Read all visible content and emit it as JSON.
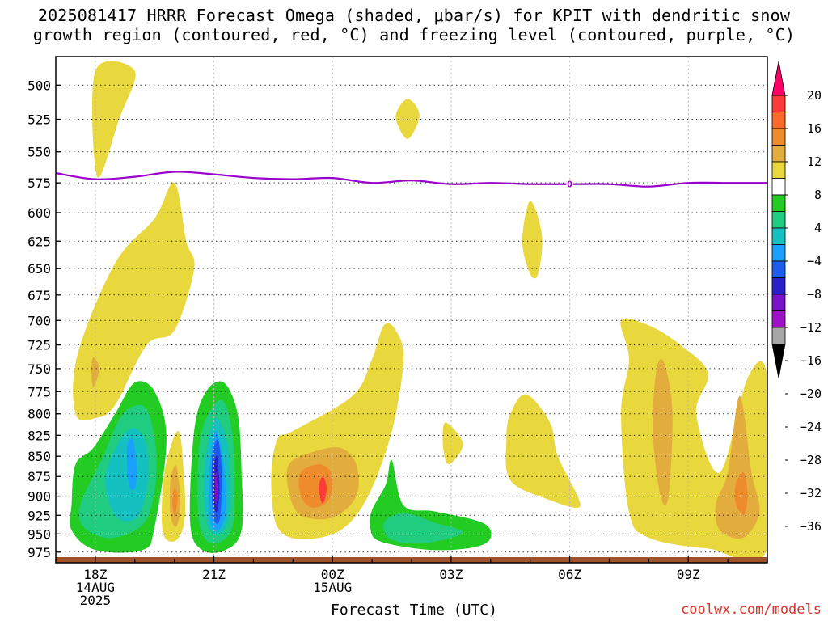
{
  "title": {
    "line1": "2025081417 HRRR Forecast Omega (shaded, μbar/s) for KPIT with dendritic snow",
    "line2": "growth region (contoured, red, °C) and freezing level (contoured, purple, °C)"
  },
  "credit": "coolwx.com/models",
  "chart_data": {
    "type": "time-height cross-section",
    "title": "2025081417 HRRR Forecast Omega (shaded, μbar/s) for KPIT with dendritic snow growth region (contoured, red, °C) and freezing level (contoured, purple, °C)",
    "xlabel": "Forecast Time (UTC)",
    "ylabel": "",
    "x_ticks": [
      {
        "hour": 18,
        "label": [
          "18Z",
          "14AUG",
          "2025"
        ]
      },
      {
        "hour": 21,
        "label": [
          "21Z"
        ]
      },
      {
        "hour": 24,
        "label": [
          "00Z",
          "15AUG"
        ]
      },
      {
        "hour": 27,
        "label": [
          "03Z"
        ]
      },
      {
        "hour": 30,
        "label": [
          "06Z"
        ]
      },
      {
        "hour": 33,
        "label": [
          "09Z"
        ]
      }
    ],
    "xlim_hours": [
      17,
      35
    ],
    "y_ticks": [
      500,
      525,
      550,
      575,
      600,
      625,
      650,
      675,
      700,
      725,
      750,
      775,
      800,
      825,
      850,
      875,
      900,
      925,
      950,
      975
    ],
    "ylim_hpa": [
      480,
      990
    ],
    "y_scale": "log-pressure",
    "grid": "dotted",
    "freezing_level": {
      "color": "#9900cc",
      "points": [
        [
          17.0,
          567
        ],
        [
          18.0,
          572
        ],
        [
          19.0,
          570
        ],
        [
          20.0,
          566
        ],
        [
          21.0,
          568
        ],
        [
          22.0,
          571
        ],
        [
          23.0,
          572
        ],
        [
          24.0,
          571
        ],
        [
          25.0,
          575
        ],
        [
          26.0,
          573
        ],
        [
          27.0,
          576
        ],
        [
          28.0,
          575
        ],
        [
          29.0,
          576
        ],
        [
          30.0,
          576
        ],
        [
          31.0,
          576
        ],
        [
          32.0,
          578
        ],
        [
          33.0,
          575
        ],
        [
          34.0,
          575
        ],
        [
          35.0,
          575
        ]
      ],
      "label": "0",
      "label_at": [
        30.0,
        576
      ]
    },
    "surface_color": "#a0522d",
    "colorbar": {
      "levels": [
        "20",
        "16",
        "12",
        "8",
        "4",
        "−4",
        "−8",
        "−12",
        "−16",
        "−20",
        "−24",
        "−28",
        "−32",
        "−36"
      ],
      "colors": [
        "#ff0066",
        "#ff3a3a",
        "#ff6a2a",
        "#ee8c2c",
        "#e3ad3d",
        "#e9d73e",
        "#ffffff",
        "#22cc22",
        "#20cc80",
        "#14c0c0",
        "#1aa0ff",
        "#1e5cf0",
        "#2a1fc8",
        "#7a12cc",
        "#a010c8",
        "#a6a6a6",
        "#000000"
      ]
    },
    "omega_regions": [
      {
        "range": "4 to 8",
        "color": "#e9d73e",
        "points": [
          [
            18.0,
            490
          ],
          [
            18.05,
            570
          ],
          [
            18.6,
            525
          ],
          [
            19.0,
            490
          ]
        ]
      },
      {
        "range": "4 to 8",
        "color": "#e9d73e",
        "points": [
          [
            17.5,
            800
          ],
          [
            17.55,
            735
          ],
          [
            18.5,
            645
          ],
          [
            19.5,
            605
          ],
          [
            20.0,
            575
          ],
          [
            20.3,
            625
          ],
          [
            20.5,
            650
          ],
          [
            20.0,
            710
          ],
          [
            19.3,
            725
          ],
          [
            18.5,
            790
          ],
          [
            18.0,
            805
          ]
        ]
      },
      {
        "range": "8 to 12",
        "color": "#e3ad3d",
        "points": [
          [
            17.95,
            738
          ],
          [
            18.1,
            750
          ],
          [
            17.95,
            770
          ],
          [
            17.9,
            752
          ]
        ]
      },
      {
        "range": "4 to 8",
        "color": "#e9d73e",
        "points": [
          [
            25.9,
            510
          ],
          [
            26.2,
            522
          ],
          [
            25.9,
            540
          ],
          [
            25.6,
            523
          ]
        ]
      },
      {
        "range": "4 to 8",
        "color": "#e9d73e",
        "points": [
          [
            29.0,
            590
          ],
          [
            29.3,
            620
          ],
          [
            29.2,
            655
          ],
          [
            29.0,
            655
          ],
          [
            28.8,
            625
          ]
        ]
      },
      {
        "range": "4 to 8",
        "color": "#e9d73e",
        "points": [
          [
            23.0,
            820
          ],
          [
            24.5,
            780
          ],
          [
            25.0,
            740
          ],
          [
            25.3,
            705
          ],
          [
            25.6,
            710
          ],
          [
            25.8,
            740
          ],
          [
            25.5,
            820
          ],
          [
            24.9,
            900
          ],
          [
            24.2,
            945
          ],
          [
            23.2,
            957
          ],
          [
            22.6,
            940
          ],
          [
            22.45,
            880
          ],
          [
            22.6,
            830
          ]
        ]
      },
      {
        "range": "8 to 12",
        "color": "#e3ad3d",
        "points": [
          [
            22.9,
            860
          ],
          [
            23.5,
            845
          ],
          [
            24.2,
            840
          ],
          [
            24.6,
            860
          ],
          [
            24.6,
            900
          ],
          [
            24.0,
            928
          ],
          [
            23.2,
            925
          ],
          [
            22.9,
            895
          ]
        ]
      },
      {
        "range": "12 to 16",
        "color": "#ee8c2c",
        "points": [
          [
            23.2,
            870
          ],
          [
            23.7,
            860
          ],
          [
            24.0,
            875
          ],
          [
            23.9,
            905
          ],
          [
            23.5,
            915
          ],
          [
            23.2,
            900
          ]
        ]
      },
      {
        "range": "16 to 20",
        "color": "#ff3a3a",
        "points": [
          [
            23.75,
            875
          ],
          [
            23.85,
            890
          ],
          [
            23.75,
            910
          ],
          [
            23.65,
            890
          ]
        ]
      },
      {
        "range": "4 to 8",
        "color": "#e9d73e",
        "points": [
          [
            26.85,
            810
          ],
          [
            27.3,
            835
          ],
          [
            26.95,
            860
          ],
          [
            26.8,
            840
          ]
        ]
      },
      {
        "range": "4 to 8",
        "color": "#e9d73e",
        "points": [
          [
            28.5,
            800
          ],
          [
            28.9,
            778
          ],
          [
            29.5,
            810
          ],
          [
            29.7,
            850
          ],
          [
            30.2,
            900
          ],
          [
            30.2,
            915
          ],
          [
            29.5,
            905
          ],
          [
            28.5,
            880
          ],
          [
            28.4,
            830
          ]
        ]
      },
      {
        "range": "4 to 8",
        "color": "#e9d73e",
        "points": [
          [
            31.3,
            700
          ],
          [
            32.0,
            705
          ],
          [
            32.8,
            725
          ],
          [
            33.5,
            755
          ],
          [
            33.2,
            800
          ],
          [
            33.8,
            870
          ],
          [
            34.5,
            760
          ],
          [
            35.0,
            760
          ],
          [
            35.0,
            970
          ],
          [
            33.5,
            970
          ],
          [
            32.0,
            955
          ],
          [
            31.5,
            920
          ],
          [
            31.3,
            800
          ],
          [
            31.5,
            740
          ]
        ]
      },
      {
        "range": "8 to 12",
        "color": "#e3ad3d",
        "points": [
          [
            32.2,
            750
          ],
          [
            32.4,
            745
          ],
          [
            32.6,
            800
          ],
          [
            32.5,
            900
          ],
          [
            32.3,
            900
          ],
          [
            32.1,
            820
          ]
        ]
      },
      {
        "range": "8 to 12",
        "color": "#e3ad3d",
        "points": [
          [
            33.7,
            910
          ],
          [
            34.0,
            870
          ],
          [
            34.3,
            780
          ],
          [
            34.6,
            870
          ],
          [
            34.8,
            920
          ],
          [
            34.4,
            955
          ],
          [
            33.8,
            945
          ]
        ]
      },
      {
        "range": "12 to 16",
        "color": "#ee8c2c",
        "points": [
          [
            34.2,
            885
          ],
          [
            34.4,
            870
          ],
          [
            34.5,
            900
          ],
          [
            34.4,
            925
          ],
          [
            34.2,
            910
          ]
        ]
      },
      {
        "range": "4 to 8",
        "color": "#e9d73e",
        "points": [
          [
            19.75,
            870
          ],
          [
            20.1,
            820
          ],
          [
            20.25,
            880
          ],
          [
            20.25,
            935
          ],
          [
            20.0,
            960
          ],
          [
            19.7,
            945
          ]
        ]
      },
      {
        "range": "8 to 12",
        "color": "#e3ad3d",
        "points": [
          [
            19.9,
            880
          ],
          [
            20.05,
            862
          ],
          [
            20.15,
            910
          ],
          [
            20.05,
            940
          ],
          [
            19.9,
            925
          ]
        ]
      },
      {
        "range": "12 to 16",
        "color": "#ee8c2c",
        "points": [
          [
            20.0,
            890
          ],
          [
            20.08,
            900
          ],
          [
            20.02,
            925
          ],
          [
            19.95,
            910
          ]
        ]
      },
      {
        "range": "-8 to -4",
        "color": "#22cc22",
        "points": [
          [
            17.4,
            910
          ],
          [
            17.5,
            860
          ],
          [
            17.95,
            840
          ],
          [
            18.5,
            800
          ],
          [
            19.0,
            765
          ],
          [
            19.5,
            775
          ],
          [
            19.8,
            830
          ],
          [
            19.5,
            940
          ],
          [
            19.2,
            972
          ],
          [
            18.0,
            972
          ],
          [
            17.4,
            945
          ]
        ]
      },
      {
        "range": "-12 to -8",
        "color": "#20cc80",
        "points": [
          [
            17.6,
            915
          ],
          [
            18.2,
            850
          ],
          [
            18.7,
            800
          ],
          [
            19.3,
            795
          ],
          [
            19.55,
            860
          ],
          [
            19.3,
            930
          ],
          [
            18.5,
            955
          ],
          [
            17.8,
            945
          ]
        ]
      },
      {
        "range": "-16 to -12",
        "color": "#14c0c0",
        "points": [
          [
            18.3,
            865
          ],
          [
            18.8,
            820
          ],
          [
            19.2,
            825
          ],
          [
            19.35,
            870
          ],
          [
            19.1,
            925
          ],
          [
            18.6,
            930
          ],
          [
            18.3,
            900
          ]
        ]
      },
      {
        "range": "-20 to -16",
        "color": "#1aa0ff",
        "points": [
          [
            18.8,
            840
          ],
          [
            18.95,
            830
          ],
          [
            19.05,
            865
          ],
          [
            19.0,
            890
          ],
          [
            18.85,
            885
          ]
        ]
      },
      {
        "range": "-8 to -4",
        "color": "#22cc22",
        "points": [
          [
            20.5,
            820
          ],
          [
            20.8,
            775
          ],
          [
            21.25,
            765
          ],
          [
            21.6,
            800
          ],
          [
            21.7,
            870
          ],
          [
            21.7,
            945
          ],
          [
            21.3,
            972
          ],
          [
            20.7,
            972
          ],
          [
            20.4,
            935
          ]
        ]
      },
      {
        "range": "-12 to -8",
        "color": "#20cc80",
        "points": [
          [
            20.65,
            830
          ],
          [
            21.0,
            790
          ],
          [
            21.3,
            790
          ],
          [
            21.5,
            840
          ],
          [
            21.5,
            930
          ],
          [
            21.2,
            960
          ],
          [
            20.8,
            958
          ],
          [
            20.6,
            920
          ]
        ]
      },
      {
        "range": "-16 to -12",
        "color": "#14c0c0",
        "points": [
          [
            20.8,
            845
          ],
          [
            21.05,
            805
          ],
          [
            21.35,
            840
          ],
          [
            21.4,
            920
          ],
          [
            21.15,
            950
          ],
          [
            20.85,
            940
          ],
          [
            20.75,
            900
          ]
        ]
      },
      {
        "range": "-20 to -16",
        "color": "#1aa0ff",
        "points": [
          [
            20.9,
            860
          ],
          [
            21.05,
            820
          ],
          [
            21.25,
            860
          ],
          [
            21.3,
            920
          ],
          [
            21.1,
            945
          ],
          [
            20.9,
            930
          ]
        ]
      },
      {
        "range": "-24 to -20",
        "color": "#1e5cf0",
        "points": [
          [
            20.95,
            855
          ],
          [
            21.1,
            830
          ],
          [
            21.2,
            870
          ],
          [
            21.15,
            930
          ],
          [
            20.98,
            925
          ]
        ]
      },
      {
        "range": "-28 to -24",
        "color": "#2a1fc8",
        "points": [
          [
            20.98,
            870
          ],
          [
            21.08,
            850
          ],
          [
            21.14,
            890
          ],
          [
            21.08,
            920
          ],
          [
            21.0,
            910
          ]
        ]
      },
      {
        "range": "-32 to -28",
        "color": "#7a12cc",
        "points": [
          [
            21.02,
            880
          ],
          [
            21.07,
            870
          ],
          [
            21.1,
            895
          ],
          [
            21.05,
            910
          ]
        ]
      },
      {
        "range": "-8 to -4",
        "color": "#22cc22",
        "points": [
          [
            25.0,
            918
          ],
          [
            25.35,
            885
          ],
          [
            25.5,
            855
          ],
          [
            25.8,
            912
          ],
          [
            26.6,
            920
          ],
          [
            27.8,
            935
          ],
          [
            28.0,
            955
          ],
          [
            27.6,
            968
          ],
          [
            26.5,
            972
          ],
          [
            25.2,
            960
          ],
          [
            24.95,
            940
          ]
        ]
      },
      {
        "range": "-12 to -8",
        "color": "#20cc80",
        "points": [
          [
            25.3,
            935
          ],
          [
            25.8,
            922
          ],
          [
            26.6,
            935
          ],
          [
            27.3,
            948
          ],
          [
            26.4,
            962
          ],
          [
            25.5,
            958
          ]
        ]
      }
    ]
  }
}
